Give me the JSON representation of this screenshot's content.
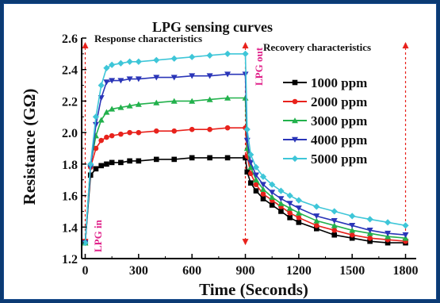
{
  "chart_data": {
    "type": "line",
    "title": "LPG sensing curves",
    "xlabel": "Time (Seconds)",
    "ylabel": "Resistance (GΩ)",
    "xlim": [
      -20,
      1860
    ],
    "ylim": [
      1.2,
      2.6
    ],
    "xticks": [
      0,
      300,
      600,
      900,
      1200,
      1500,
      1800
    ],
    "xtick_labels": [
      "0",
      "300",
      "600",
      "900",
      "1200",
      "1500",
      "1800"
    ],
    "yticks": [
      1.2,
      1.4,
      1.6,
      1.8,
      2.0,
      2.2,
      2.4,
      2.6
    ],
    "ytick_labels": [
      "1.2",
      "1.4",
      "1.6",
      "1.8",
      "2.0",
      "2.2",
      "2.4",
      "2.6"
    ],
    "grid": false,
    "legend_position": "top-right",
    "annotations": {
      "response": "Response characteristics",
      "recovery": "Recovery characteristics",
      "lpg_in": "LPG in",
      "lpg_out": "LPG out"
    },
    "event_times": [
      0,
      900,
      1800
    ],
    "series": [
      {
        "name": "1000 ppm",
        "color": "#000000",
        "marker": "square",
        "x": [
          0,
          30,
          60,
          90,
          120,
          150,
          200,
          250,
          300,
          400,
          500,
          600,
          700,
          800,
          900,
          910,
          930,
          960,
          1000,
          1050,
          1100,
          1150,
          1200,
          1300,
          1400,
          1500,
          1600,
          1700,
          1800
        ],
        "values": [
          1.3,
          1.73,
          1.77,
          1.79,
          1.8,
          1.81,
          1.81,
          1.82,
          1.82,
          1.83,
          1.83,
          1.84,
          1.84,
          1.84,
          1.84,
          1.75,
          1.68,
          1.63,
          1.58,
          1.54,
          1.5,
          1.46,
          1.43,
          1.39,
          1.35,
          1.33,
          1.31,
          1.3,
          1.3
        ]
      },
      {
        "name": "2000 ppm",
        "color": "#e8221c",
        "marker": "circle",
        "x": [
          0,
          30,
          60,
          90,
          120,
          150,
          200,
          250,
          300,
          400,
          500,
          600,
          700,
          800,
          900,
          910,
          930,
          960,
          1000,
          1050,
          1100,
          1150,
          1200,
          1300,
          1400,
          1500,
          1600,
          1700,
          1800
        ],
        "values": [
          1.3,
          1.78,
          1.9,
          1.95,
          1.97,
          1.98,
          1.99,
          2.0,
          2.0,
          2.01,
          2.01,
          2.02,
          2.02,
          2.03,
          2.03,
          1.85,
          1.74,
          1.67,
          1.61,
          1.57,
          1.53,
          1.49,
          1.46,
          1.41,
          1.38,
          1.35,
          1.33,
          1.32,
          1.31
        ]
      },
      {
        "name": "3000 ppm",
        "color": "#22b14c",
        "marker": "triangle-up",
        "x": [
          0,
          30,
          60,
          90,
          120,
          150,
          200,
          250,
          300,
          400,
          500,
          600,
          700,
          800,
          900,
          910,
          930,
          960,
          1000,
          1050,
          1100,
          1150,
          1200,
          1300,
          1400,
          1500,
          1600,
          1700,
          1800
        ],
        "values": [
          1.3,
          1.8,
          1.98,
          2.08,
          2.13,
          2.15,
          2.16,
          2.17,
          2.18,
          2.19,
          2.2,
          2.2,
          2.21,
          2.22,
          2.22,
          1.9,
          1.78,
          1.7,
          1.64,
          1.59,
          1.55,
          1.52,
          1.49,
          1.44,
          1.41,
          1.38,
          1.36,
          1.34,
          1.33
        ]
      },
      {
        "name": "4000 ppm",
        "color": "#2a35b8",
        "marker": "triangle-down",
        "x": [
          0,
          30,
          60,
          90,
          120,
          150,
          200,
          250,
          300,
          400,
          500,
          600,
          700,
          800,
          900,
          910,
          930,
          960,
          1000,
          1050,
          1100,
          1150,
          1200,
          1300,
          1400,
          1500,
          1600,
          1700,
          1800
        ],
        "values": [
          1.3,
          1.78,
          2.05,
          2.22,
          2.32,
          2.33,
          2.33,
          2.34,
          2.34,
          2.35,
          2.35,
          2.36,
          2.36,
          2.37,
          2.37,
          1.95,
          1.81,
          1.73,
          1.67,
          1.62,
          1.58,
          1.55,
          1.52,
          1.47,
          1.44,
          1.41,
          1.38,
          1.36,
          1.35
        ]
      },
      {
        "name": "5000 ppm",
        "color": "#3ec6d8",
        "marker": "diamond",
        "x": [
          0,
          30,
          60,
          90,
          120,
          150,
          200,
          250,
          300,
          400,
          500,
          600,
          700,
          800,
          900,
          910,
          930,
          960,
          1000,
          1050,
          1100,
          1150,
          1200,
          1300,
          1400,
          1500,
          1600,
          1700,
          1800
        ],
        "values": [
          1.3,
          1.8,
          2.1,
          2.3,
          2.41,
          2.43,
          2.44,
          2.45,
          2.45,
          2.46,
          2.47,
          2.48,
          2.49,
          2.5,
          2.5,
          2.02,
          1.86,
          1.78,
          1.72,
          1.67,
          1.63,
          1.6,
          1.57,
          1.53,
          1.5,
          1.47,
          1.45,
          1.43,
          1.41
        ]
      }
    ]
  }
}
